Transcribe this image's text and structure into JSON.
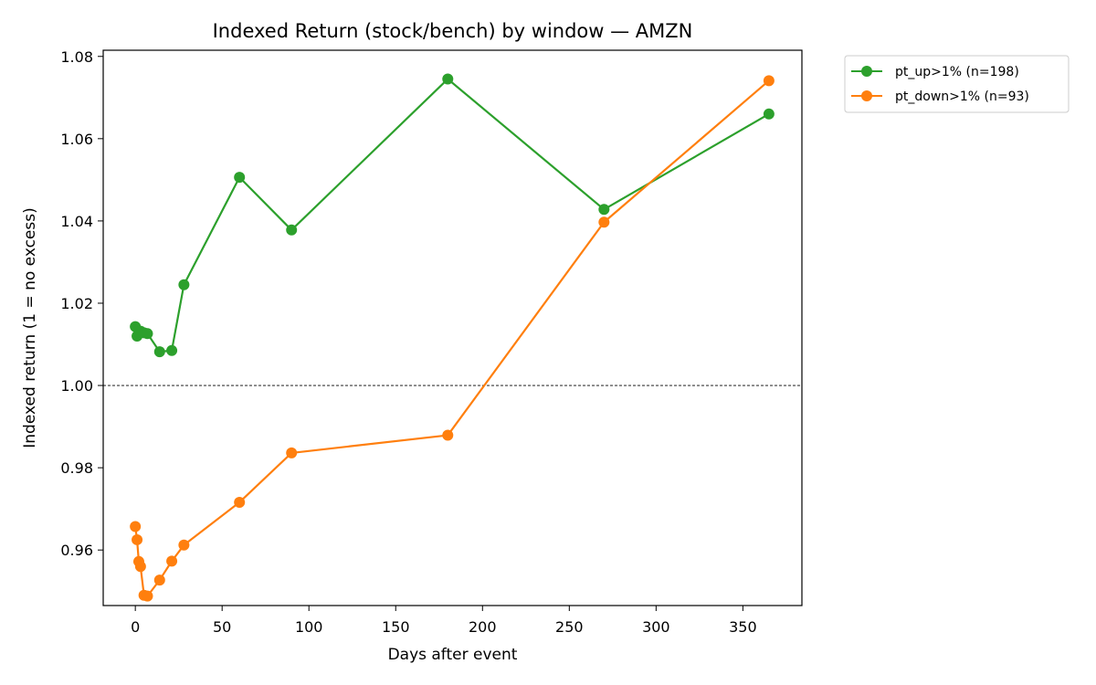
{
  "chart_data": {
    "type": "line",
    "title": "Indexed Return (stock/bench) by window — AMZN",
    "xlabel": "Days after event",
    "ylabel": "Indexed return (1 = no excess)",
    "xlim": [
      -18.5,
      384
    ],
    "ylim": [
      0.9465,
      1.0815
    ],
    "xticks": [
      0,
      50,
      100,
      150,
      200,
      250,
      300,
      350
    ],
    "yticks": [
      0.96,
      0.98,
      1.0,
      1.02,
      1.04,
      1.06,
      1.08
    ],
    "ytick_labels": [
      "0.96",
      "0.98",
      "1.00",
      "1.02",
      "1.04",
      "1.06",
      "1.08"
    ],
    "reference_line": {
      "y": 1.0,
      "style": "dashed",
      "color": "#000000"
    },
    "grid": false,
    "legend_position": "outside-top-right",
    "series": [
      {
        "name": "pt_up>1% (n=198)",
        "color": "#2ca02c",
        "x": [
          0,
          1,
          3,
          5,
          7,
          14,
          21,
          28,
          60,
          90,
          180,
          270,
          365
        ],
        "y": [
          1.0143,
          1.012,
          1.0132,
          1.0128,
          1.0126,
          1.0082,
          1.0085,
          1.0245,
          1.0506,
          1.0378,
          1.0745,
          1.0428,
          1.066
        ]
      },
      {
        "name": "pt_down>1% (n=93)",
        "color": "#ff7f0e",
        "x": [
          0,
          1,
          2,
          3,
          5,
          7,
          14,
          21,
          28,
          60,
          90,
          180,
          270,
          365
        ],
        "y": [
          0.9657,
          0.9625,
          0.9572,
          0.956,
          0.949,
          0.9488,
          0.9527,
          0.9573,
          0.9612,
          0.9716,
          0.9836,
          0.9879,
          1.0397,
          1.0741
        ]
      }
    ]
  }
}
